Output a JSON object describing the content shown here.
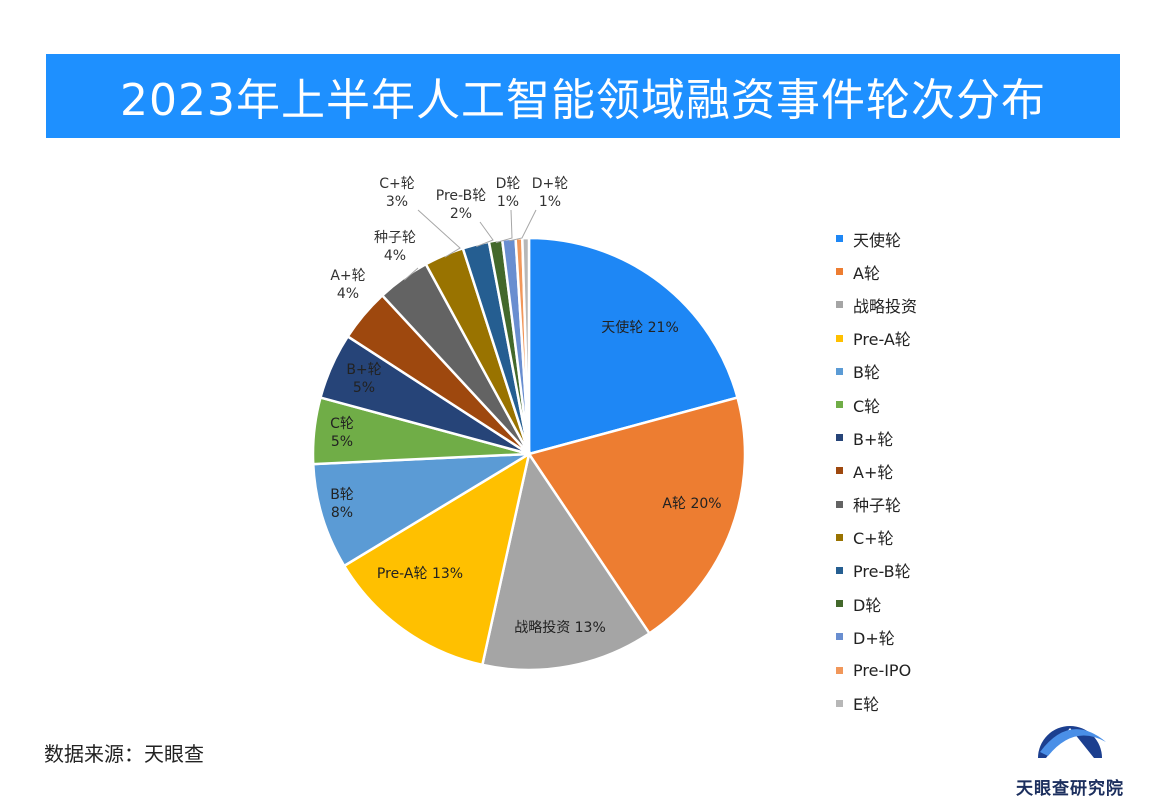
{
  "title": "2023年上半年人工智能领域融资事件轮次分布",
  "source": "数据来源：天眼查",
  "logo_text": "天眼查研究院",
  "chart_data": {
    "type": "pie",
    "title": "2023年上半年人工智能领域融资事件轮次分布",
    "legend_position": "right",
    "slices": [
      {
        "name": "天使轮",
        "value": 21,
        "color": "#1e87f5"
      },
      {
        "name": "A轮",
        "value": 20,
        "color": "#ed7d31"
      },
      {
        "name": "战略投资",
        "value": 13,
        "color": "#a5a5a5"
      },
      {
        "name": "Pre-A轮",
        "value": 13,
        "color": "#ffc000"
      },
      {
        "name": "B轮",
        "value": 8,
        "color": "#5b9bd5"
      },
      {
        "name": "C轮",
        "value": 5,
        "color": "#70ad47"
      },
      {
        "name": "B+轮",
        "value": 5,
        "color": "#264478"
      },
      {
        "name": "A+轮",
        "value": 4,
        "color": "#9e480e"
      },
      {
        "name": "种子轮",
        "value": 4,
        "color": "#636363"
      },
      {
        "name": "C+轮",
        "value": 3,
        "color": "#997300"
      },
      {
        "name": "Pre-B轮",
        "value": 2,
        "color": "#255e91"
      },
      {
        "name": "D轮",
        "value": 1,
        "color": "#43682b"
      },
      {
        "name": "D+轮",
        "value": 1,
        "color": "#698ed0"
      },
      {
        "name": "Pre-IPO",
        "value": 0.5,
        "color": "#f1975a"
      },
      {
        "name": "E轮",
        "value": 0.5,
        "color": "#b7b7b7"
      }
    ],
    "data_labels": [
      {
        "name": "天使轮",
        "text": "天使轮 21%"
      },
      {
        "name": "A轮",
        "text": "A轮 20%"
      },
      {
        "name": "战略投资",
        "text": "战略投资 13%"
      },
      {
        "name": "Pre-A轮",
        "text": "Pre-A轮 13%"
      },
      {
        "name": "B轮",
        "text": "B轮\n8%"
      },
      {
        "name": "C轮",
        "text": "C轮\n5%"
      },
      {
        "name": "B+轮",
        "text": "B+轮\n5%"
      },
      {
        "name": "A+轮",
        "text": "A+轮\n4%"
      },
      {
        "name": "种子轮",
        "text": "种子轮\n4%"
      },
      {
        "name": "C+轮",
        "text": "C+轮\n3%"
      },
      {
        "name": "Pre-B轮",
        "text": "Pre-B轮\n2%"
      },
      {
        "name": "D轮",
        "text": "D轮\n1%"
      },
      {
        "name": "D+轮",
        "text": "D+轮\n1%"
      }
    ]
  },
  "colors": {
    "title_bar": "#1e90ff",
    "logo_primary": "#1c3f8f"
  }
}
